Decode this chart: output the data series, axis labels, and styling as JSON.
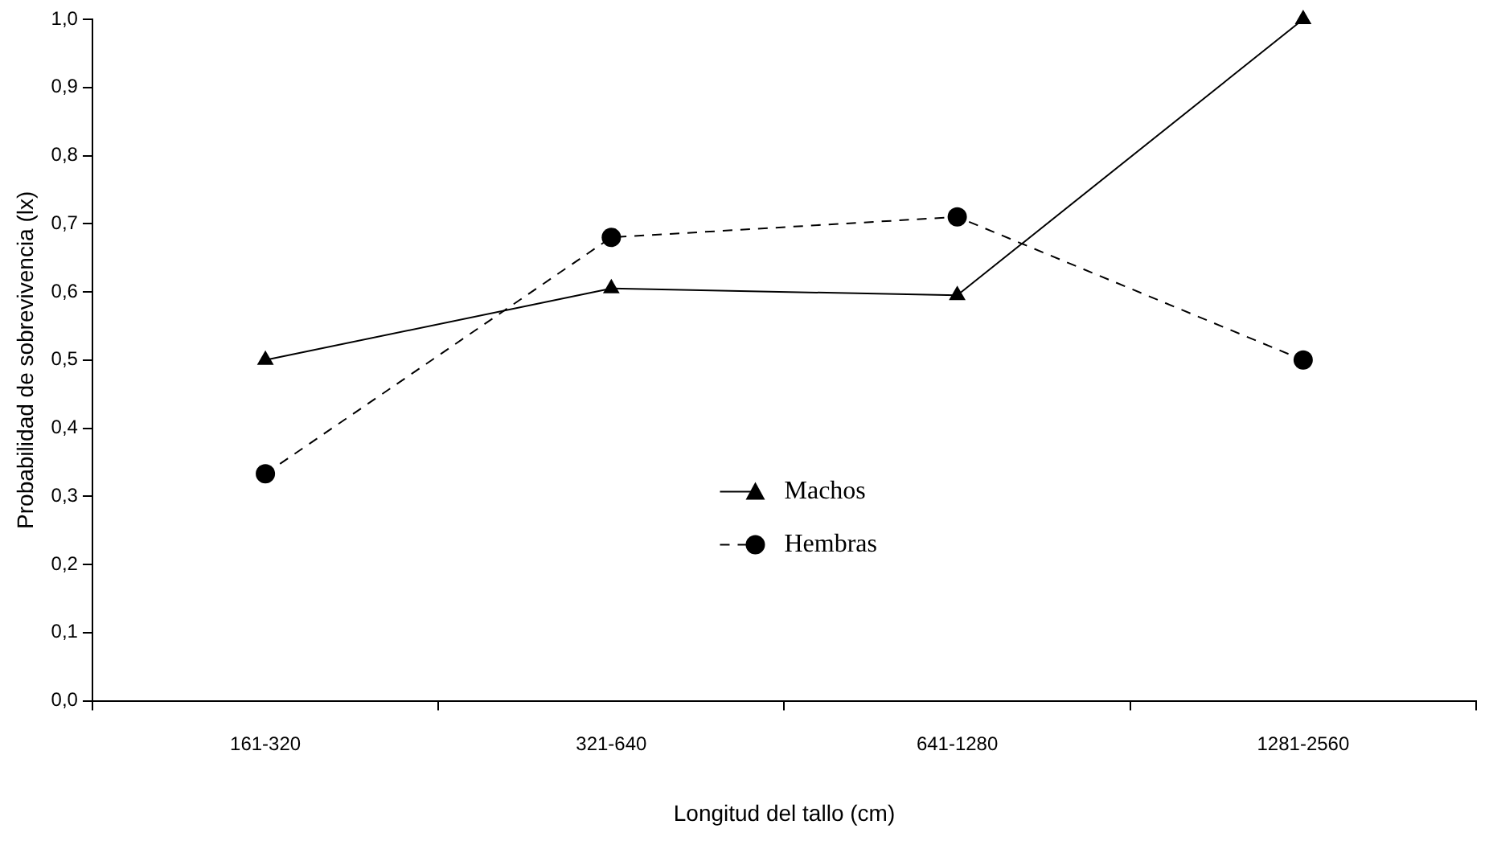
{
  "chart_data": {
    "type": "line",
    "xlabel": "Longitud del tallo (cm)",
    "ylabel": "Probabilidad de sobrevivencia (lx)",
    "categories": [
      "161-320",
      "321-640",
      "641-1280",
      "1281-2560"
    ],
    "series": [
      {
        "name": "Machos",
        "color": "#000000",
        "marker": "triangle",
        "line_style": "solid",
        "values": [
          0.5,
          0.605,
          0.595,
          1.0
        ]
      },
      {
        "name": "Hembras",
        "color": "#000000",
        "marker": "circle",
        "line_style": "dashed",
        "values": [
          0.333,
          0.68,
          0.71,
          0.5
        ]
      }
    ],
    "ylim": [
      0,
      1
    ],
    "yticks": [
      {
        "value": 0,
        "label": "0,0"
      },
      {
        "value": 0.1,
        "label": "0,1"
      },
      {
        "value": 0.2,
        "label": "0,2"
      },
      {
        "value": 0.3,
        "label": "0,3"
      },
      {
        "value": 0.4,
        "label": "0,4"
      },
      {
        "value": 0.5,
        "label": "0,5"
      },
      {
        "value": 0.6,
        "label": "0,6"
      },
      {
        "value": 0.7,
        "label": "0,7"
      },
      {
        "value": 0.8,
        "label": "0,8"
      },
      {
        "value": 0.9,
        "label": "0,9"
      },
      {
        "value": 1,
        "label": "1,0"
      }
    ],
    "grid": false,
    "legend": "bottom"
  }
}
